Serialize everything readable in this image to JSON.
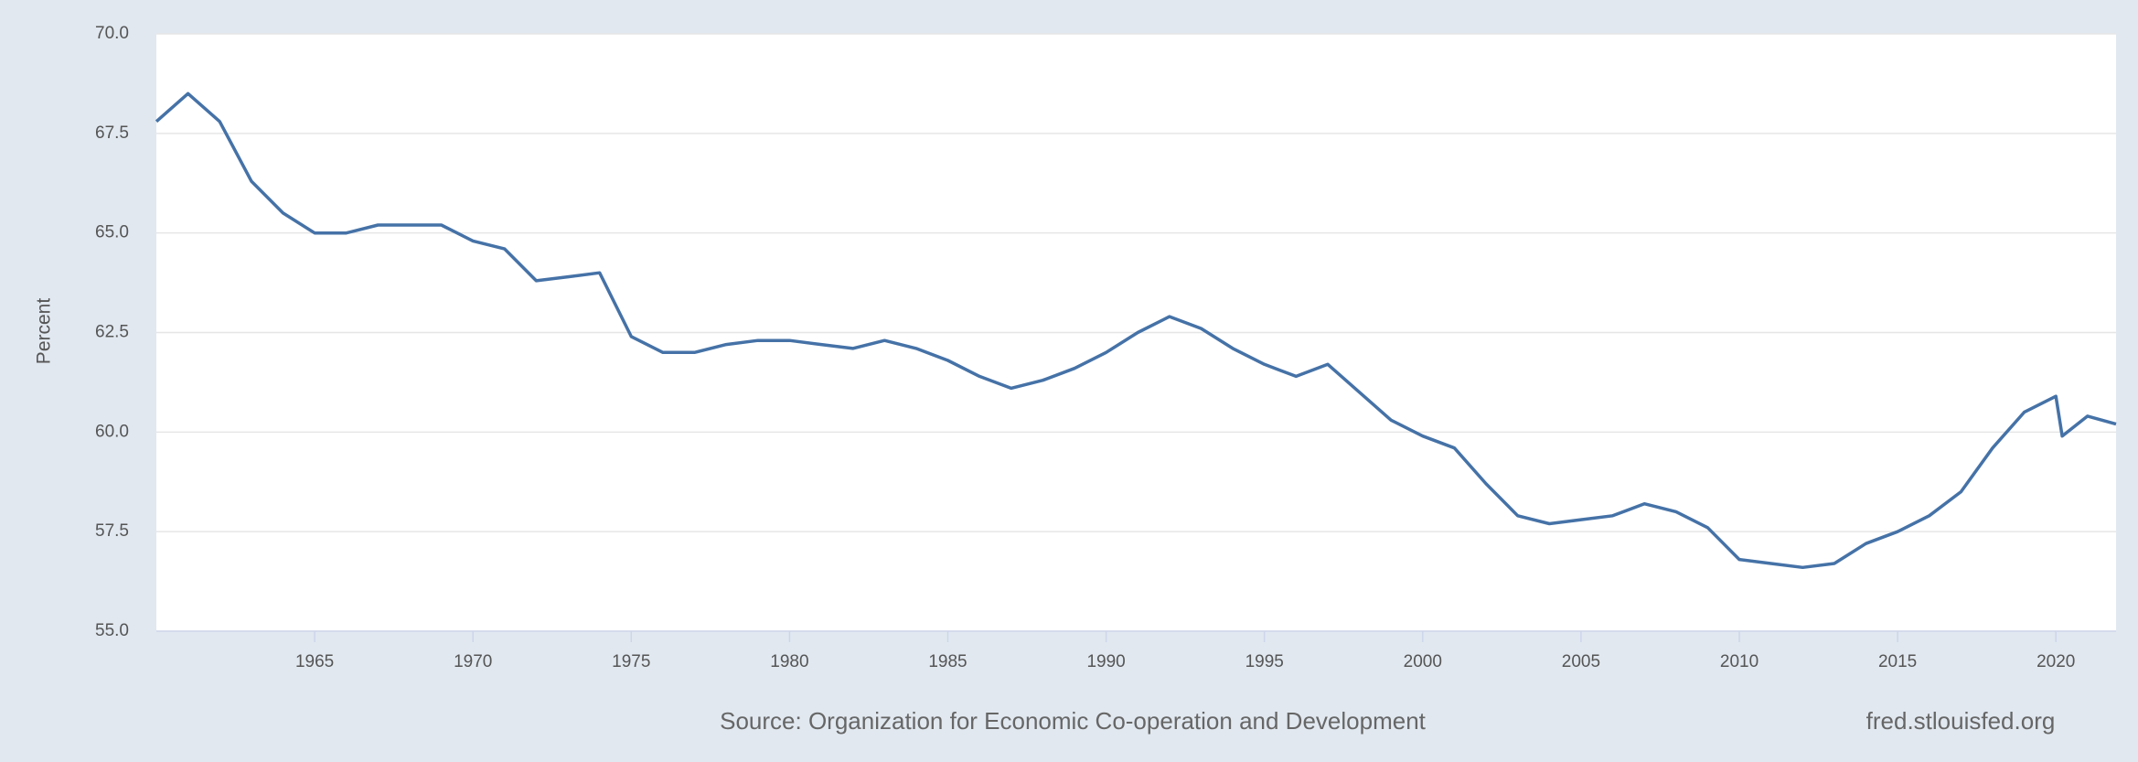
{
  "chart_data": {
    "type": "line",
    "y_label": "Percent",
    "source": "Source: Organization for Economic Co-operation and Development",
    "watermark": "fred.stlouisfed.org",
    "color": "#4572a7",
    "grid": true,
    "x": [
      1960,
      1961,
      1962,
      1963,
      1964,
      1965,
      1966,
      1967,
      1968,
      1969,
      1970,
      1971,
      1972,
      1973,
      1974,
      1975,
      1976,
      1977,
      1978,
      1979,
      1980,
      1981,
      1982,
      1983,
      1984,
      1985,
      1986,
      1987,
      1988,
      1989,
      1990,
      1991,
      1992,
      1993,
      1994,
      1995,
      1996,
      1997,
      1998,
      1999,
      2000,
      2001,
      2002,
      2003,
      2004,
      2005,
      2006,
      2007,
      2008,
      2009,
      2010,
      2011,
      2012,
      2013,
      2014,
      2015,
      2016,
      2017,
      2018,
      2019,
      2020,
      2020.2,
      2021,
      2021.9
    ],
    "values": [
      67.8,
      68.5,
      67.8,
      66.3,
      65.5,
      65.0,
      65.0,
      65.2,
      65.2,
      65.2,
      64.8,
      64.6,
      63.8,
      63.9,
      64.0,
      62.4,
      62.0,
      62.0,
      62.2,
      62.3,
      62.3,
      62.2,
      62.1,
      62.3,
      62.1,
      61.8,
      61.4,
      61.1,
      61.3,
      61.6,
      62.0,
      62.5,
      62.9,
      62.6,
      62.1,
      61.7,
      61.4,
      61.7,
      61.0,
      60.3,
      59.9,
      59.6,
      58.7,
      57.9,
      57.7,
      57.8,
      57.9,
      58.2,
      58.0,
      57.6,
      56.8,
      56.7,
      56.6,
      56.7,
      57.2,
      57.5,
      57.9,
      58.5,
      59.6,
      60.5,
      60.9,
      59.9,
      60.4,
      60.2
    ],
    "xlim": [
      1960,
      2021.9
    ],
    "xticks": [
      1965,
      1970,
      1975,
      1980,
      1985,
      1990,
      1995,
      2000,
      2005,
      2010,
      2015,
      2020
    ],
    "ylim": [
      55,
      70
    ],
    "yticks": [
      {
        "value": 55,
        "label": "55.0"
      },
      {
        "value": 57.5,
        "label": "57.5"
      },
      {
        "value": 60,
        "label": "60.0"
      },
      {
        "value": 62.5,
        "label": "62.5"
      },
      {
        "value": 65,
        "label": "65.0"
      },
      {
        "value": 67.5,
        "label": "67.5"
      },
      {
        "value": 70,
        "label": "70.0"
      }
    ]
  }
}
